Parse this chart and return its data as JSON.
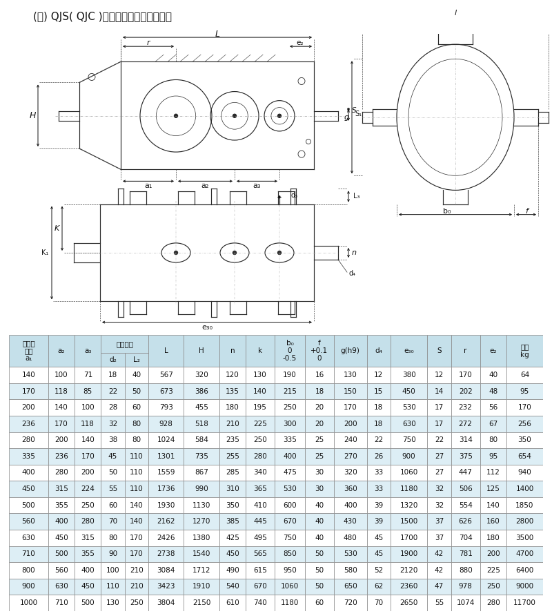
{
  "title": "(五) QJS( QJC )减速器外形及安装尺寸表",
  "table_data": [
    [
      140,
      100,
      71,
      18,
      40,
      567,
      320,
      120,
      130,
      190,
      16,
      130,
      12,
      380,
      12,
      170,
      40,
      64
    ],
    [
      170,
      118,
      85,
      22,
      50,
      673,
      386,
      135,
      140,
      215,
      18,
      150,
      15,
      450,
      14,
      202,
      48,
      95
    ],
    [
      200,
      140,
      100,
      28,
      60,
      793,
      455,
      180,
      195,
      250,
      20,
      170,
      18,
      530,
      17,
      232,
      56,
      170
    ],
    [
      236,
      170,
      118,
      32,
      80,
      928,
      518,
      210,
      225,
      300,
      20,
      200,
      18,
      630,
      17,
      272,
      67,
      256
    ],
    [
      280,
      200,
      140,
      38,
      80,
      1024,
      584,
      235,
      250,
      335,
      25,
      240,
      22,
      750,
      22,
      314,
      80,
      350
    ],
    [
      335,
      236,
      170,
      45,
      110,
      1301,
      735,
      255,
      280,
      400,
      25,
      270,
      26,
      900,
      27,
      375,
      95,
      654
    ],
    [
      400,
      280,
      200,
      50,
      110,
      1559,
      867,
      285,
      340,
      475,
      30,
      320,
      33,
      1060,
      27,
      447,
      112,
      940
    ],
    [
      450,
      315,
      224,
      55,
      110,
      1736,
      990,
      310,
      365,
      530,
      30,
      360,
      33,
      1180,
      32,
      506,
      125,
      1400
    ],
    [
      500,
      355,
      250,
      60,
      140,
      1930,
      1130,
      350,
      410,
      600,
      40,
      400,
      39,
      1320,
      32,
      554,
      140,
      1850
    ],
    [
      560,
      400,
      280,
      70,
      140,
      2162,
      1270,
      385,
      445,
      670,
      40,
      430,
      39,
      1500,
      37,
      626,
      160,
      2800
    ],
    [
      630,
      450,
      315,
      80,
      170,
      2426,
      1380,
      425,
      495,
      750,
      40,
      480,
      45,
      1700,
      37,
      704,
      180,
      3500
    ],
    [
      710,
      500,
      355,
      90,
      170,
      2738,
      1540,
      450,
      565,
      850,
      50,
      530,
      45,
      1900,
      42,
      781,
      200,
      4700
    ],
    [
      800,
      560,
      400,
      100,
      210,
      3084,
      1712,
      490,
      615,
      950,
      50,
      580,
      52,
      2120,
      42,
      880,
      225,
      6400
    ],
    [
      900,
      630,
      450,
      110,
      210,
      3423,
      1910,
      540,
      670,
      1060,
      50,
      650,
      62,
      2360,
      47,
      978,
      250,
      9000
    ],
    [
      1000,
      710,
      500,
      130,
      250,
      3804,
      2150,
      610,
      740,
      1180,
      60,
      720,
      70,
      2650,
      55,
      1074,
      280,
      11700
    ]
  ],
  "header_bg": "#c5e0ea",
  "row_bg_even": "#ddeef5",
  "row_bg_odd": "#ffffff",
  "border_color": "#888888",
  "text_color": "#111111",
  "title_fontsize": 11,
  "table_fontsize": 7.5,
  "header_fontsize": 7.5
}
